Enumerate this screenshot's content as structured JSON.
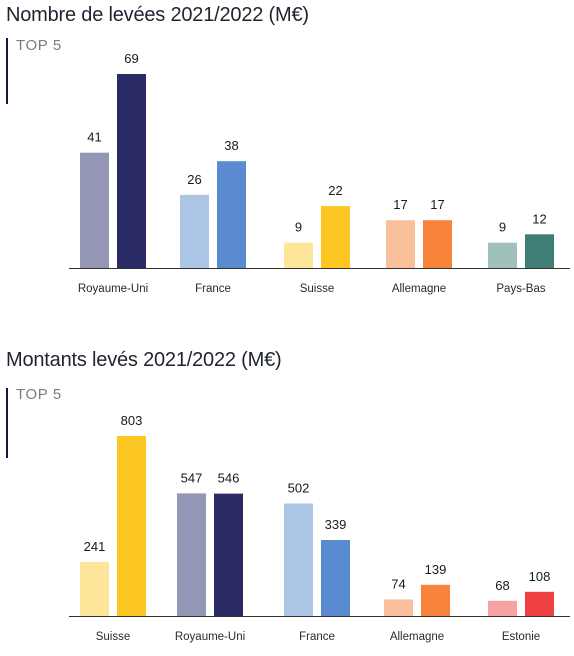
{
  "chart_data": [
    {
      "type": "bar",
      "title": "Nombre de levées 2021/2022 (M€)",
      "subtitle": "TOP 5",
      "categories": [
        "Royaume-Uni",
        "France",
        "Suisse",
        "Allemagne",
        "Pays-Bas"
      ],
      "series": [
        {
          "values": [
            41,
            26,
            9,
            17,
            9
          ]
        },
        {
          "values": [
            69,
            38,
            22,
            17,
            12
          ]
        }
      ],
      "colors": [
        [
          "#9496b6",
          "#2a2a64"
        ],
        [
          "#adc6e6",
          "#5a8ad0"
        ],
        [
          "#fde59a",
          "#fcc723"
        ],
        [
          "#fac09c",
          "#f7843a"
        ],
        [
          "#a0c0bc",
          "#3e7e77"
        ]
      ],
      "ylim": [
        0,
        69
      ],
      "grid": false,
      "legend": "none"
    },
    {
      "type": "bar",
      "title": "Montants levés 2021/2022 (M€)",
      "subtitle": "TOP 5",
      "categories": [
        "Suisse",
        "Royaume-Uni",
        "France",
        "Allemagne",
        "Estonie"
      ],
      "series": [
        {
          "values": [
            241,
            547,
            502,
            74,
            68
          ]
        },
        {
          "values": [
            803,
            546,
            339,
            139,
            108
          ]
        }
      ],
      "colors": [
        [
          "#fde59a",
          "#fcc723"
        ],
        [
          "#9496b6",
          "#2a2a64"
        ],
        [
          "#adc6e6",
          "#5a8ad0"
        ],
        [
          "#fac09c",
          "#f7843a"
        ],
        [
          "#f8a3a3",
          "#ef4141"
        ]
      ],
      "ylim": [
        0,
        803
      ],
      "grid": false,
      "legend": "none"
    }
  ]
}
